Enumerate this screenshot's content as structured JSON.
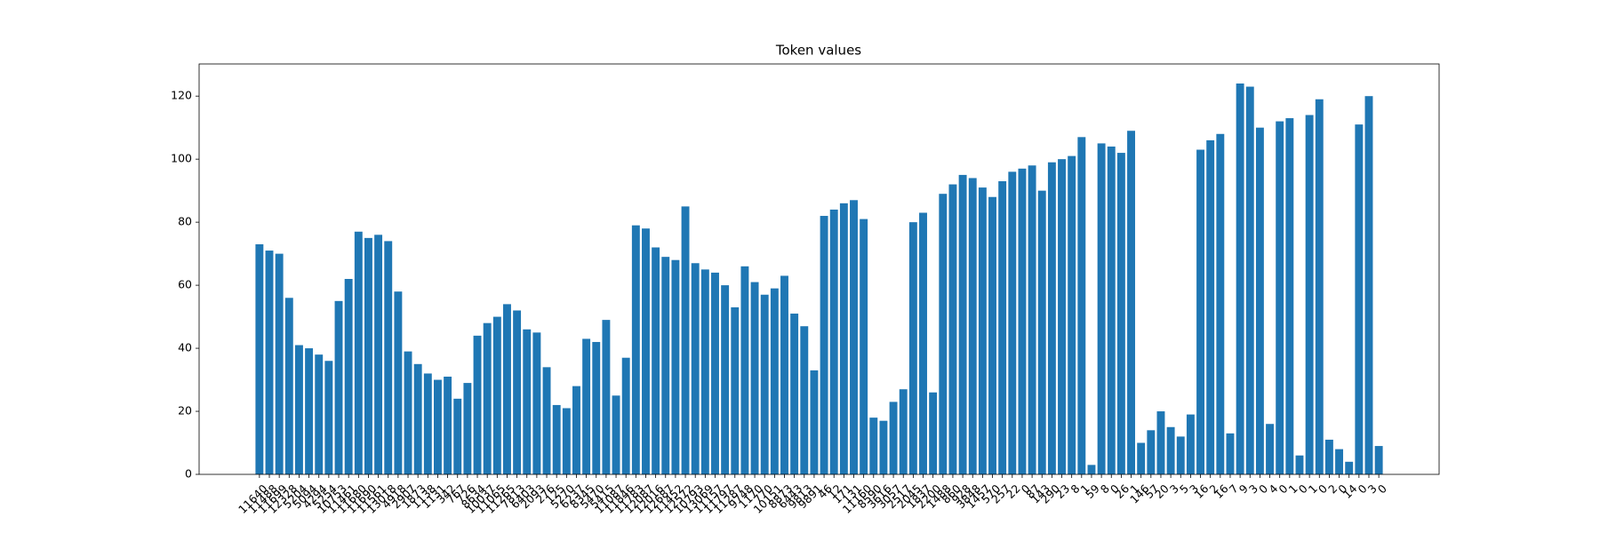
{
  "chart_data": {
    "type": "bar",
    "title": "Token values",
    "categories": [
      "11640",
      "11488",
      "11699",
      "12328",
      "5204",
      "5094",
      "4294",
      "5254",
      "10753",
      "11461",
      "11680",
      "11690",
      "11561",
      "13018",
      "4918",
      "2907",
      "1873",
      "1138",
      "1131",
      "342",
      "767",
      "726",
      "8634",
      "10037",
      "11065",
      "11265",
      "7813",
      "6403",
      "2093",
      "276",
      "125",
      "5270",
      "6237",
      "8345",
      "5470",
      "5415",
      "11087",
      "11846",
      "11783",
      "12087",
      "12016",
      "12687",
      "11452",
      "12572",
      "10793",
      "13069",
      "11157",
      "11797",
      "11287",
      "9748",
      "1170",
      "770",
      "10151",
      "8873",
      "6443",
      "9813",
      "9891",
      "46",
      "12",
      "171",
      "131",
      "11160",
      "8590",
      "3616",
      "3057",
      "2517",
      "2045",
      "1837",
      "2200",
      "1488",
      "860",
      "928",
      "3848",
      "1457",
      "570",
      "257",
      "22",
      "0",
      "87",
      "143",
      "290",
      "23",
      "8",
      "1",
      "59",
      "8",
      "0",
      "26",
      "1",
      "146",
      "57",
      "20",
      "3",
      "5",
      "3",
      "16",
      "2",
      "16",
      "7",
      "9",
      "3",
      "0",
      "4",
      "0",
      "1",
      "0",
      "1",
      "0",
      "2",
      "0",
      "14",
      "0",
      "3",
      "0"
    ],
    "values": [
      73,
      71,
      70,
      56,
      41,
      40,
      38,
      36,
      55,
      62,
      77,
      75,
      76,
      74,
      58,
      39,
      35,
      32,
      30,
      31,
      24,
      29,
      44,
      48,
      50,
      54,
      52,
      46,
      45,
      34,
      22,
      21,
      28,
      43,
      42,
      49,
      25,
      37,
      79,
      78,
      72,
      69,
      68,
      85,
      67,
      65,
      64,
      60,
      53,
      66,
      61,
      57,
      59,
      63,
      51,
      47,
      33,
      82,
      84,
      86,
      87,
      81,
      18,
      17,
      23,
      27,
      80,
      83,
      26,
      89,
      92,
      95,
      94,
      91,
      88,
      93,
      96,
      97,
      98,
      90,
      99,
      100,
      101,
      107,
      3,
      105,
      104,
      102,
      109,
      10,
      14,
      20,
      15,
      12,
      19,
      103,
      106,
      108,
      13,
      124,
      123,
      110,
      16,
      112,
      113,
      6,
      114,
      119,
      11,
      8,
      4,
      111,
      120,
      9
    ],
    "color": "#1f77b4",
    "ylim": [
      0,
      130.2
    ],
    "yticks": [
      0,
      20,
      40,
      60,
      80,
      100,
      120
    ]
  }
}
